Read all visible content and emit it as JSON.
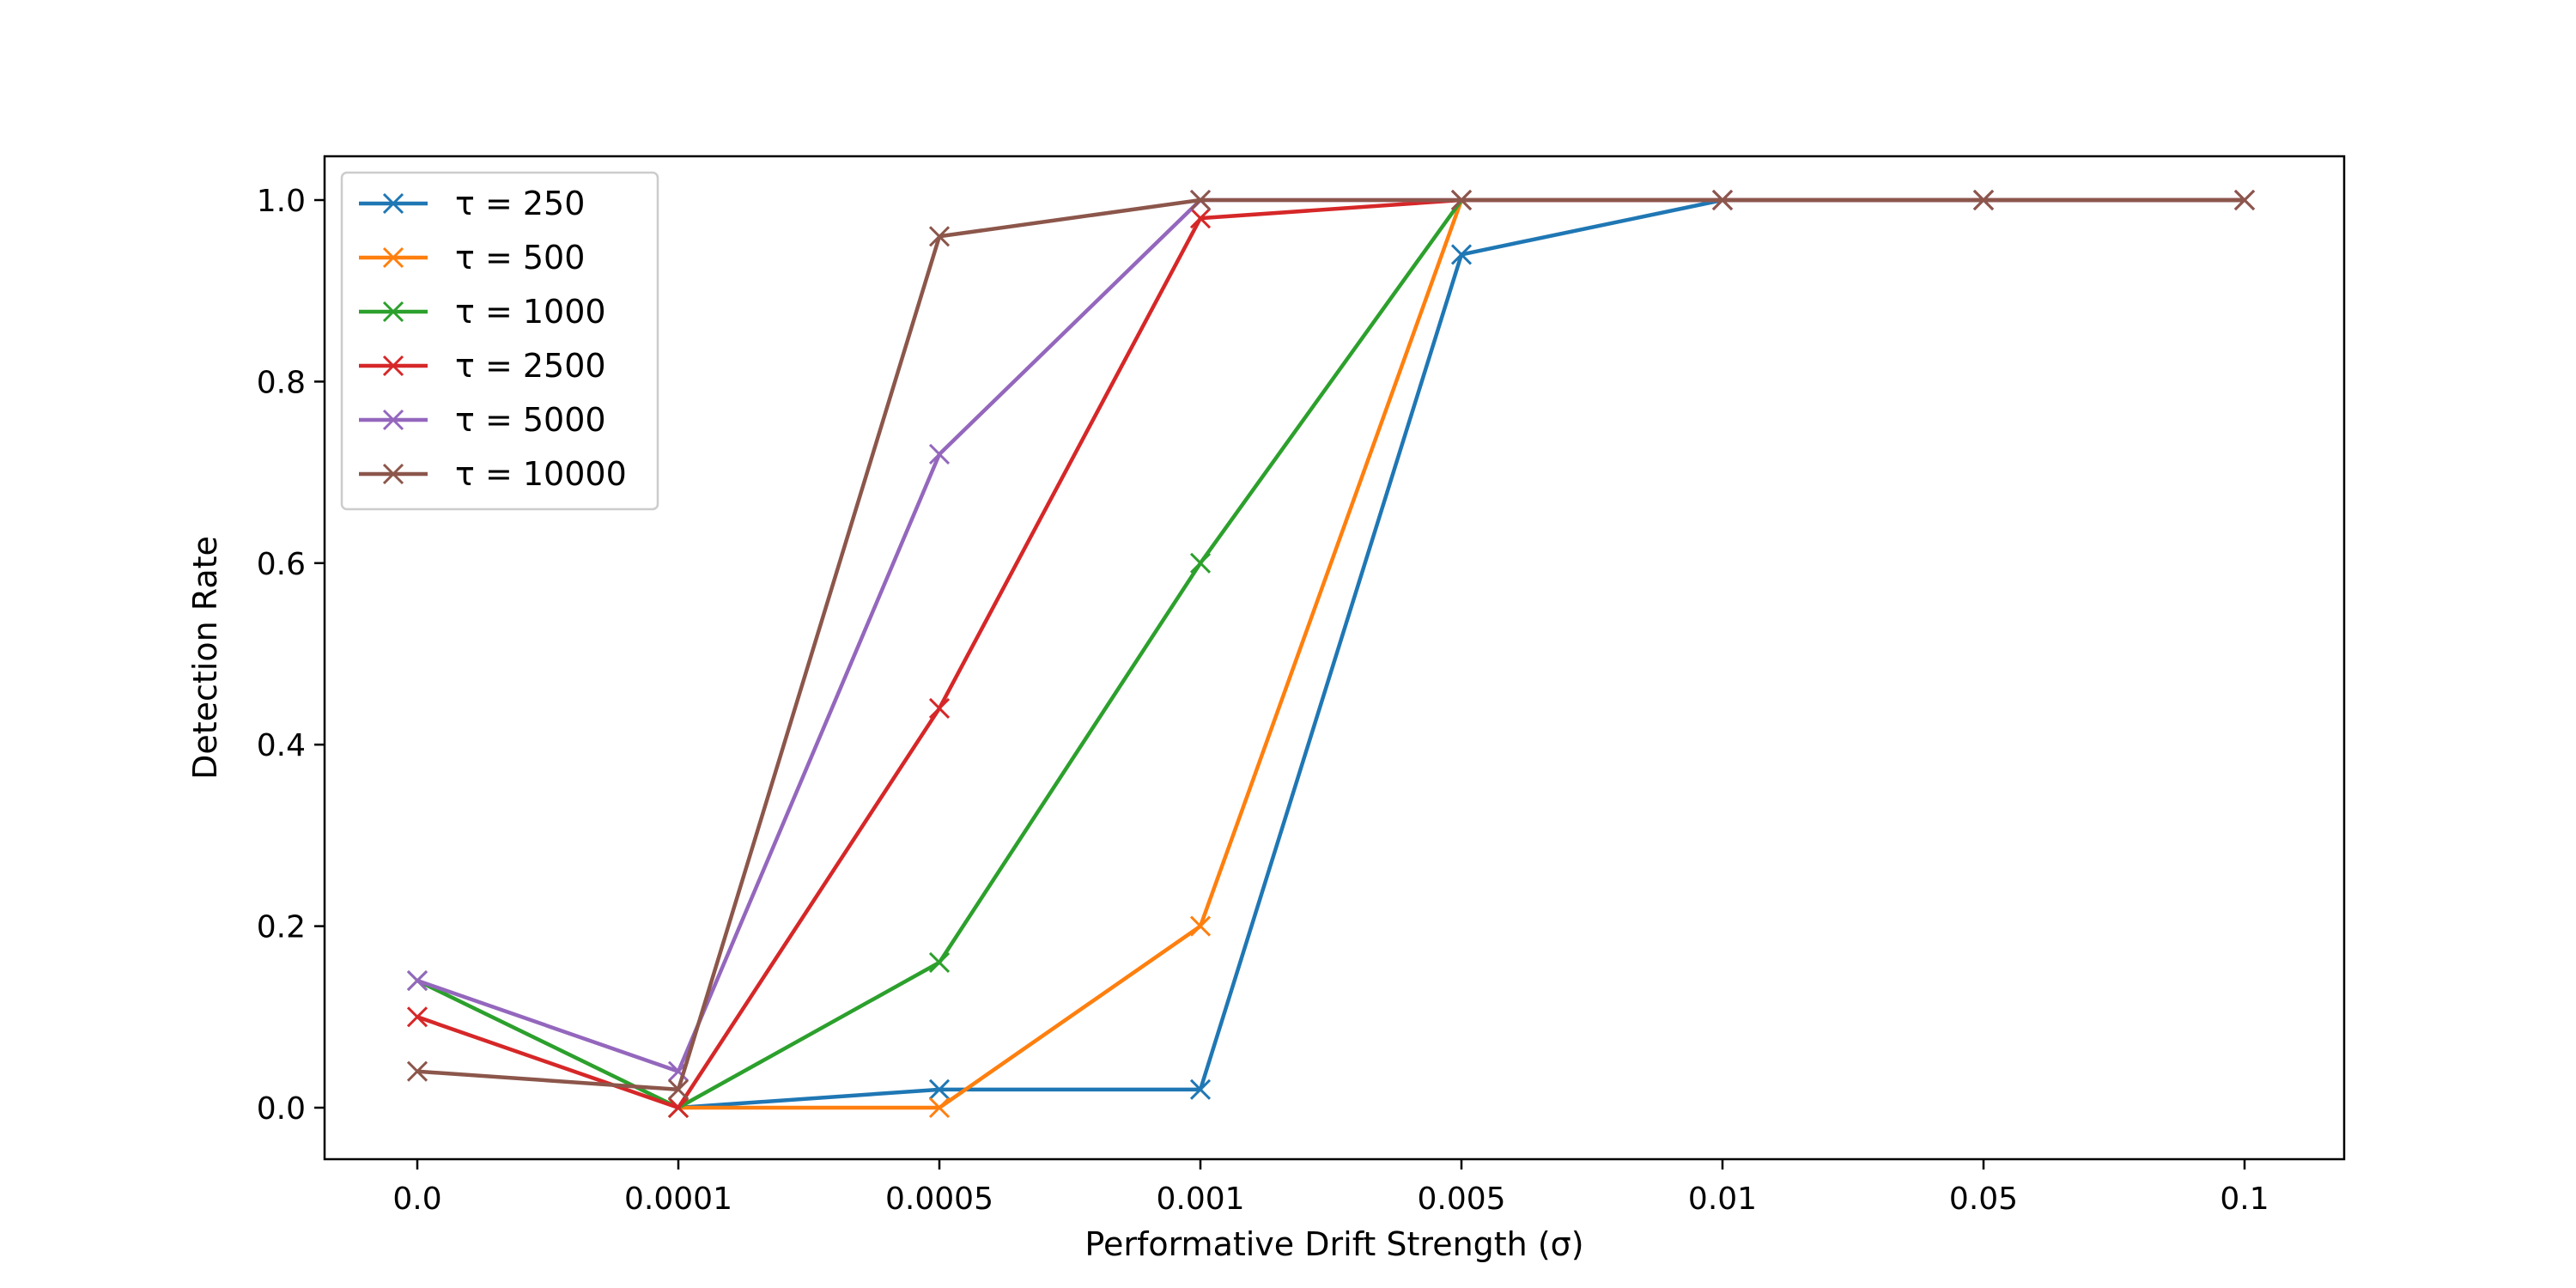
{
  "chart_data": {
    "type": "line",
    "title": "",
    "xlabel": "Performative Drift Strength (σ)",
    "ylabel": "Detection Rate",
    "categories": [
      "0.0",
      "0.0001",
      "0.0005",
      "0.001",
      "0.005",
      "0.01",
      "0.05",
      "0.1"
    ],
    "x_scale": "categorical (evenly spaced)",
    "ylim": [
      -0.05,
      1.05
    ],
    "yticks": [
      0.0,
      0.2,
      0.4,
      0.6,
      0.8,
      1.0
    ],
    "ytick_labels": [
      "0.0",
      "0.2",
      "0.4",
      "0.6",
      "0.8",
      "1.0"
    ],
    "marker": "x",
    "grid": false,
    "legend_position": "upper-left",
    "series": [
      {
        "name": "τ = 250",
        "color": "#1f77b4",
        "values": [
          null,
          0.0,
          0.02,
          0.02,
          0.94,
          1.0,
          1.0,
          1.0
        ]
      },
      {
        "name": "τ = 500",
        "color": "#ff7f0e",
        "values": [
          null,
          0.0,
          0.0,
          0.2,
          1.0,
          1.0,
          1.0,
          1.0
        ]
      },
      {
        "name": "τ = 1000",
        "color": "#2ca02c",
        "values": [
          0.14,
          0.0,
          0.16,
          0.6,
          1.0,
          1.0,
          1.0,
          1.0
        ]
      },
      {
        "name": "τ = 2500",
        "color": "#d62728",
        "values": [
          0.1,
          0.0,
          0.44,
          0.98,
          1.0,
          1.0,
          1.0,
          1.0
        ]
      },
      {
        "name": "τ = 5000",
        "color": "#9467bd",
        "values": [
          0.14,
          0.04,
          0.72,
          1.0,
          1.0,
          1.0,
          1.0,
          1.0
        ]
      },
      {
        "name": "τ = 10000",
        "color": "#8c564b",
        "values": [
          0.04,
          0.02,
          0.96,
          1.0,
          1.0,
          1.0,
          1.0,
          1.0
        ]
      }
    ]
  }
}
